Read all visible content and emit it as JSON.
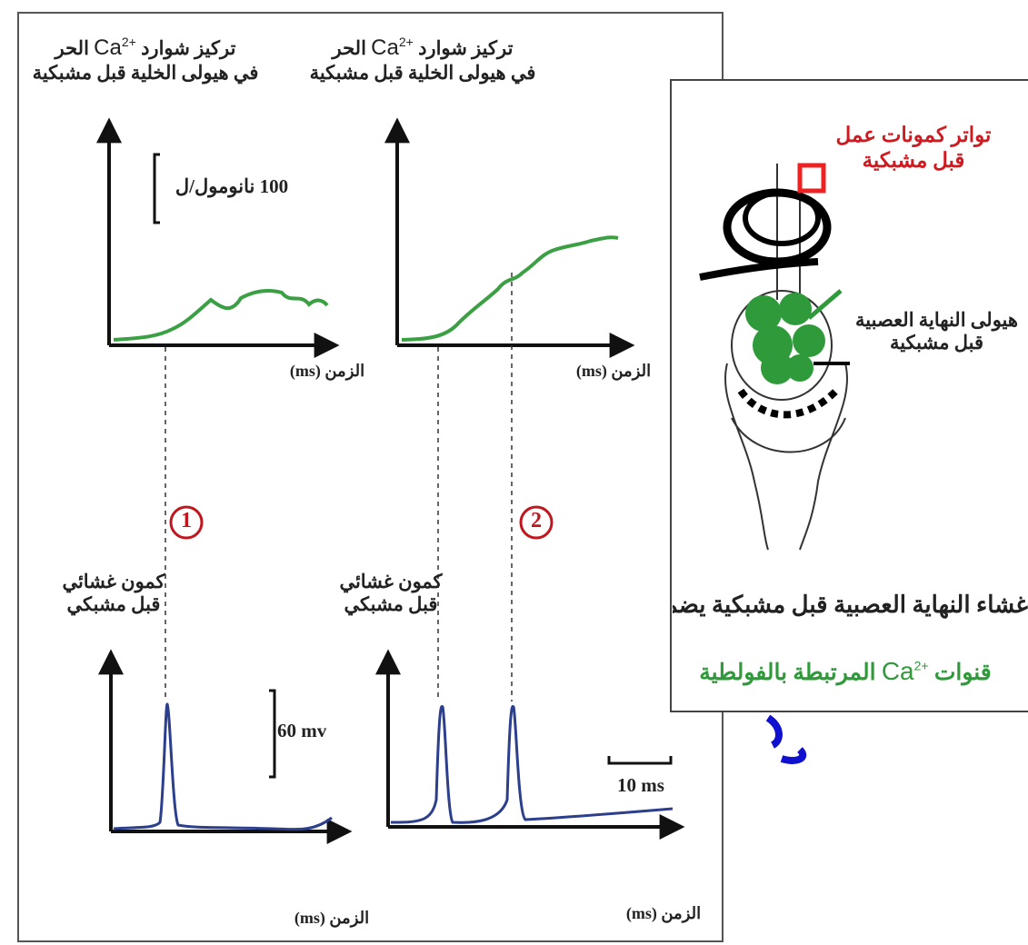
{
  "graphs": {
    "calcium": {
      "label": {
        "before": "تركيز شوارد",
        "ion": "Ca",
        "charge": "2+",
        "after": "الحر",
        "line2": "في هيولى الخلية قبل مشبكية"
      },
      "time_axis": "الزمن (ms)",
      "scale": "100 نانومول/ل"
    },
    "potential": {
      "label": [
        "كمون غشائي",
        "قبل مشبكي"
      ],
      "time_axis": "الزمن (ms)",
      "scale": "60 mv",
      "time_scale": "10 ms"
    },
    "markers": [
      "1",
      "2"
    ]
  },
  "inset": {
    "frequency": [
      "تواتر كمونات عمل",
      "قبل مشبكية"
    ],
    "cytoplasm": [
      "هيولى النهاية العصبية",
      "قبل مشبكية"
    ],
    "caption": {
      "line1": "غشاء النهاية العصبية قبل مشبكية يضم",
      "before": "قنوات",
      "ion": "Ca",
      "charge": "2+",
      "after": "المرتبطة بالفولطية"
    }
  }
}
